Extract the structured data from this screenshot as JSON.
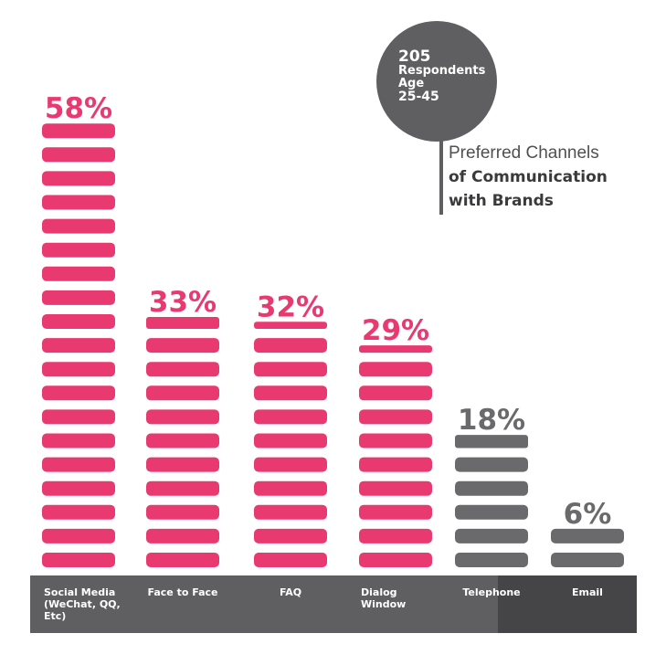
{
  "badge": {
    "count": "205",
    "line1": "Respondents",
    "line2": "Age",
    "line3": "25-45"
  },
  "title": {
    "line1": "Preferred Channels",
    "line2": "of Communication",
    "line3": "with Brands"
  },
  "colors": {
    "highlight": "#e83a71",
    "neutral": "#6a6a6c",
    "axis_band": "#5f5f61",
    "axis_band_dark": "#454547"
  },
  "chart_data": {
    "type": "bar",
    "unit": "%",
    "categories": [
      [
        "Social Media",
        "(WeChat, QQ,",
        "Etc)"
      ],
      [
        "Face to Face"
      ],
      [
        "FAQ"
      ],
      [
        "Dialog",
        "Window"
      ],
      [
        "Telephone"
      ],
      [
        "Email"
      ]
    ],
    "values": [
      58,
      33,
      32,
      29,
      18,
      6
    ],
    "value_labels": [
      "58%",
      "33%",
      "32%",
      "29%",
      "18%",
      "6%"
    ],
    "highlighted": [
      true,
      true,
      true,
      true,
      false,
      false
    ]
  }
}
